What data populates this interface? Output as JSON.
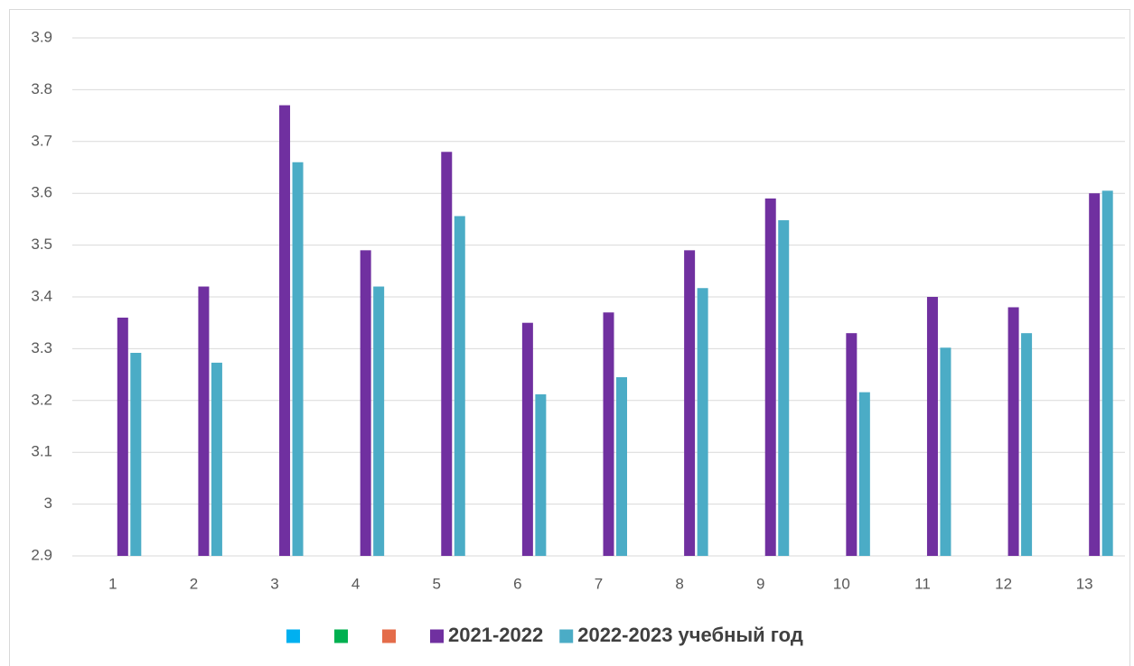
{
  "chart_data": {
    "type": "bar",
    "categories": [
      "1",
      "2",
      "3",
      "4",
      "5",
      "6",
      "7",
      "8",
      "9",
      "10",
      "11",
      "12",
      "13"
    ],
    "series": [
      {
        "name": null,
        "color": "#00b0f0",
        "values": [
          null,
          null,
          null,
          null,
          null,
          null,
          null,
          null,
          null,
          null,
          null,
          null,
          null
        ]
      },
      {
        "name": null,
        "color": "#00b050",
        "values": [
          null,
          null,
          null,
          null,
          null,
          null,
          null,
          null,
          null,
          null,
          null,
          null,
          null
        ]
      },
      {
        "name": null,
        "color": "#e46c4a",
        "values": [
          null,
          null,
          null,
          null,
          null,
          null,
          null,
          null,
          null,
          null,
          null,
          null,
          null
        ]
      },
      {
        "name": "2021-2022",
        "color": "#7030a0",
        "values": [
          3.36,
          3.42,
          3.77,
          3.49,
          3.68,
          3.35,
          3.37,
          3.49,
          3.59,
          3.33,
          3.4,
          3.38,
          3.6
        ]
      },
      {
        "name": "2022-2023 учебный год",
        "color": "#4bacc6",
        "values": [
          3.292,
          3.273,
          3.66,
          3.42,
          3.556,
          3.212,
          3.245,
          3.417,
          3.548,
          3.216,
          3.302,
          3.33,
          3.605
        ]
      }
    ],
    "ylim": [
      2.9,
      3.9
    ],
    "yticks": [
      2.9,
      3,
      3.1,
      3.2,
      3.3,
      3.4,
      3.5,
      3.6,
      3.7,
      3.8,
      3.9
    ],
    "grid": true,
    "legend": "bottom"
  }
}
